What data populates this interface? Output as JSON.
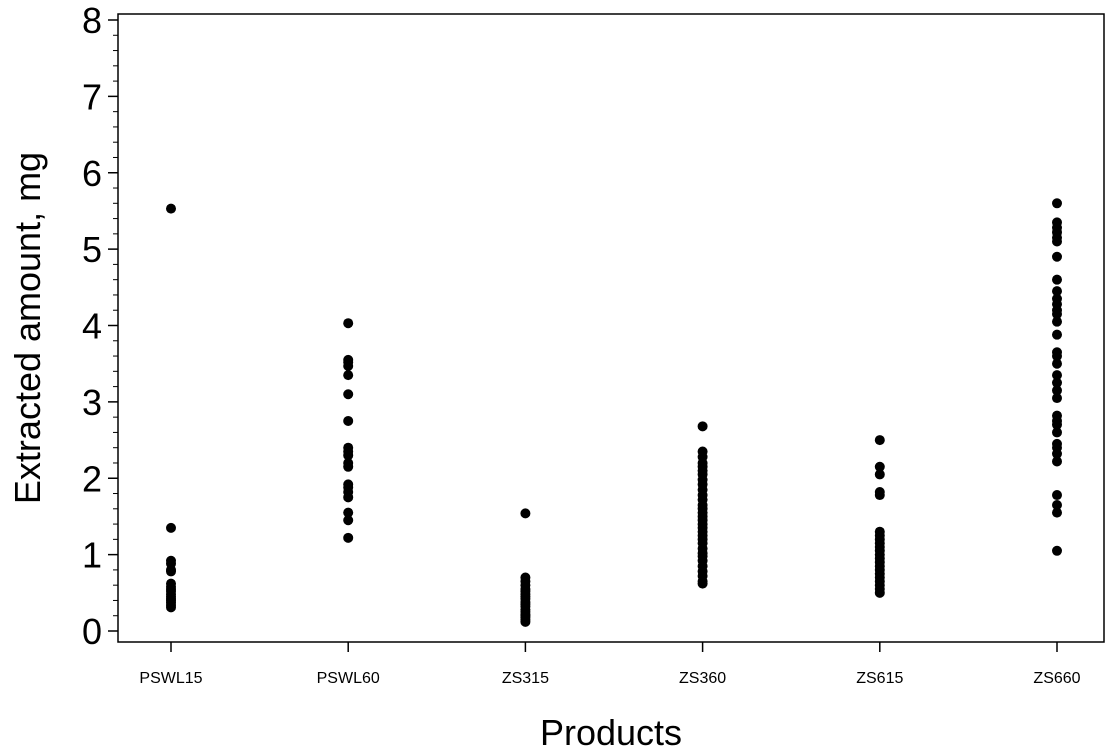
{
  "chart_data": {
    "type": "scatter",
    "title": "",
    "xlabel": "Products",
    "ylabel": "Extracted amount, mg",
    "categories": [
      "PSWL15",
      "PSWL60",
      "ZS315",
      "ZS360",
      "ZS615",
      "ZS660"
    ],
    "ylim": [
      0,
      8
    ],
    "yticks": [
      0,
      1,
      2,
      3,
      4,
      5,
      6,
      7,
      8
    ],
    "grid": false,
    "legend": "none",
    "marker_color": "#000000",
    "points": [
      {
        "category": "PSWL15",
        "values": [
          5.53,
          1.35,
          0.92,
          0.88,
          0.8,
          0.78,
          0.62,
          0.58,
          0.55,
          0.52,
          0.48,
          0.45,
          0.42,
          0.4,
          0.37,
          0.34,
          0.31
        ]
      },
      {
        "category": "PSWL60",
        "values": [
          4.03,
          3.55,
          3.52,
          3.47,
          3.35,
          3.1,
          2.75,
          2.4,
          2.35,
          2.3,
          2.2,
          2.15,
          1.92,
          1.88,
          1.82,
          1.75,
          1.55,
          1.45,
          1.22
        ]
      },
      {
        "category": "ZS315",
        "values": [
          1.54,
          0.7,
          0.65,
          0.6,
          0.55,
          0.52,
          0.48,
          0.45,
          0.42,
          0.38,
          0.35,
          0.32,
          0.28,
          0.25,
          0.22,
          0.2,
          0.18,
          0.15,
          0.12
        ]
      },
      {
        "category": "ZS360",
        "values": [
          2.68,
          2.35,
          2.28,
          2.2,
          2.15,
          2.1,
          2.05,
          1.98,
          1.92,
          1.85,
          1.78,
          1.72,
          1.65,
          1.6,
          1.55,
          1.5,
          1.45,
          1.4,
          1.35,
          1.3,
          1.25,
          1.2,
          1.15,
          1.08,
          1.02,
          0.98,
          0.92,
          0.85,
          0.78,
          0.72,
          0.65,
          0.62
        ]
      },
      {
        "category": "ZS615",
        "values": [
          2.5,
          2.15,
          2.05,
          1.82,
          1.78,
          1.3,
          1.25,
          1.2,
          1.15,
          1.1,
          1.05,
          1.0,
          0.95,
          0.9,
          0.85,
          0.8,
          0.75,
          0.7,
          0.65,
          0.6,
          0.55,
          0.5
        ]
      },
      {
        "category": "ZS660",
        "values": [
          5.6,
          5.35,
          5.28,
          5.22,
          5.15,
          5.1,
          4.9,
          4.6,
          4.45,
          4.35,
          4.28,
          4.2,
          4.15,
          4.05,
          3.88,
          3.65,
          3.6,
          3.5,
          3.35,
          3.25,
          3.15,
          3.05,
          2.82,
          2.75,
          2.7,
          2.6,
          2.45,
          2.4,
          2.32,
          2.22,
          1.78,
          1.65,
          1.55,
          1.05
        ]
      }
    ]
  }
}
